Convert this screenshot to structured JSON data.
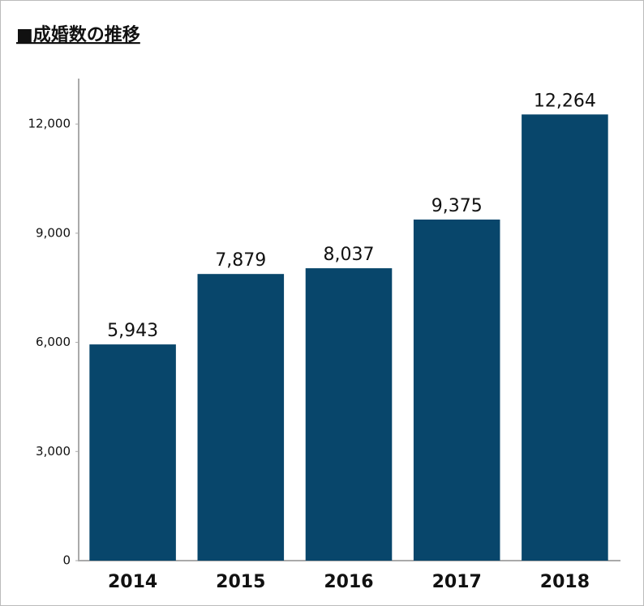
{
  "chart_data": {
    "type": "bar",
    "title": "■成婚数の推移",
    "categories": [
      "2014",
      "2015",
      "2016",
      "2017",
      "2018"
    ],
    "values": [
      5943,
      7879,
      8037,
      9375,
      12264
    ],
    "value_labels": [
      "5,943",
      "7,879",
      "8,037",
      "9,375",
      "12,264"
    ],
    "color": "#08466b",
    "ylim": [
      0,
      13250
    ],
    "yticks": [
      0,
      {
        "value": 3000,
        "label": "3,000"
      },
      {
        "value": 6000,
        "label": "6,000"
      },
      {
        "value": 9000,
        "label": "9,000"
      },
      {
        "value": 12000,
        "label": "12,000"
      }
    ],
    "grid": false
  }
}
